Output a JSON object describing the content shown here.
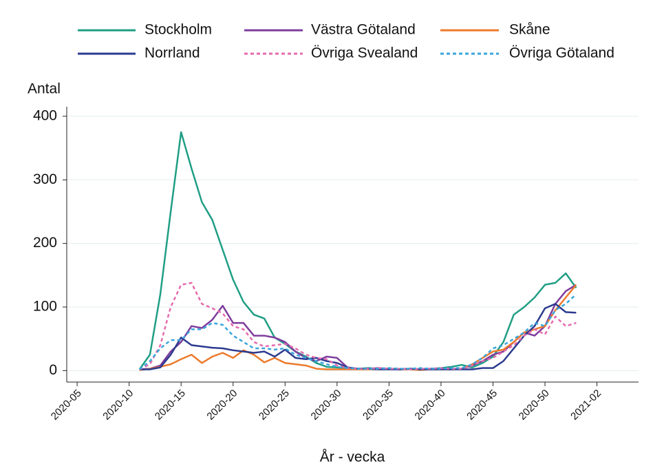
{
  "chart_data": {
    "type": "line",
    "y_label": "Antal",
    "x_label": "År - vecka",
    "x": [
      "2020-11",
      "2020-12",
      "2020-13",
      "2020-14",
      "2020-15",
      "2020-16",
      "2020-17",
      "2020-18",
      "2020-19",
      "2020-20",
      "2020-21",
      "2020-22",
      "2020-23",
      "2020-24",
      "2020-25",
      "2020-26",
      "2020-27",
      "2020-28",
      "2020-29",
      "2020-30",
      "2020-31",
      "2020-32",
      "2020-33",
      "2020-34",
      "2020-35",
      "2020-36",
      "2020-37",
      "2020-38",
      "2020-39",
      "2020-40",
      "2020-41",
      "2020-42",
      "2020-43",
      "2020-44",
      "2020-45",
      "2020-46",
      "2020-47",
      "2020-48",
      "2020-49",
      "2020-50",
      "2020-51",
      "2020-52",
      "2020-53"
    ],
    "xlim": [
      "2020-04",
      "2021-06"
    ],
    "xticks": [
      "2020-05",
      "2020-10",
      "2020-15",
      "2020-20",
      "2020-25",
      "2020-30",
      "2020-35",
      "2020-40",
      "2020-45",
      "2020-50",
      "2021-02"
    ],
    "ylim": [
      -18,
      415
    ],
    "yticks": [
      0,
      100,
      200,
      300,
      400
    ],
    "grid": true,
    "legend": "top",
    "series": [
      {
        "name": "Stockholm",
        "color": "#1f9e84",
        "style": "solid",
        "values": [
          2,
          25,
          120,
          250,
          375,
          318,
          265,
          237,
          190,
          143,
          108,
          88,
          82,
          52,
          42,
          30,
          22,
          12,
          6,
          5,
          3,
          3,
          4,
          3,
          3,
          2,
          3,
          2,
          3,
          4,
          6,
          9,
          5,
          12,
          22,
          45,
          88,
          100,
          115,
          135,
          138,
          153,
          130
        ]
      },
      {
        "name": "Västra Götaland",
        "color": "#7e3c9d",
        "style": "solid",
        "values": [
          2,
          3,
          8,
          30,
          45,
          70,
          67,
          80,
          102,
          75,
          75,
          55,
          55,
          52,
          45,
          30,
          20,
          15,
          22,
          20,
          5,
          3,
          3,
          4,
          3,
          2,
          3,
          2,
          3,
          3,
          3,
          3,
          8,
          15,
          25,
          30,
          45,
          60,
          55,
          70,
          105,
          125,
          135
        ]
      },
      {
        "name": "Skåne",
        "color": "#ec7a2c",
        "style": "solid",
        "values": [
          1,
          3,
          6,
          10,
          18,
          25,
          12,
          22,
          28,
          20,
          32,
          25,
          13,
          20,
          12,
          10,
          8,
          3,
          2,
          2,
          2,
          2,
          2,
          2,
          3,
          2,
          2,
          1,
          2,
          2,
          2,
          3,
          10,
          20,
          30,
          33,
          45,
          60,
          65,
          70,
          95,
          115,
          135
        ]
      },
      {
        "name": "Norrland",
        "color": "#2b3a8f",
        "style": "solid",
        "values": [
          2,
          2,
          5,
          25,
          52,
          40,
          38,
          36,
          35,
          32,
          30,
          28,
          30,
          22,
          33,
          20,
          18,
          20,
          15,
          12,
          5,
          3,
          3,
          2,
          2,
          2,
          3,
          2,
          2,
          2,
          2,
          2,
          2,
          4,
          4,
          15,
          35,
          55,
          70,
          98,
          105,
          92,
          91
        ]
      },
      {
        "name": "Övriga Svealand",
        "color": "#e46aad",
        "style": "dotted",
        "values": [
          2,
          10,
          40,
          100,
          135,
          138,
          105,
          98,
          90,
          70,
          65,
          45,
          38,
          40,
          42,
          35,
          25,
          20,
          18,
          8,
          4,
          3,
          3,
          4,
          3,
          3,
          2,
          3,
          3,
          4,
          3,
          3,
          8,
          15,
          20,
          30,
          40,
          55,
          65,
          57,
          85,
          70,
          75
        ]
      },
      {
        "name": "Övriga Götaland",
        "color": "#39a5dc",
        "style": "dotted",
        "values": [
          2,
          15,
          35,
          48,
          48,
          65,
          65,
          75,
          72,
          55,
          45,
          35,
          35,
          33,
          35,
          25,
          20,
          15,
          10,
          6,
          4,
          3,
          3,
          3,
          4,
          3,
          3,
          4,
          3,
          3,
          4,
          4,
          10,
          20,
          35,
          40,
          50,
          60,
          75,
          70,
          95,
          105,
          120
        ]
      }
    ]
  }
}
